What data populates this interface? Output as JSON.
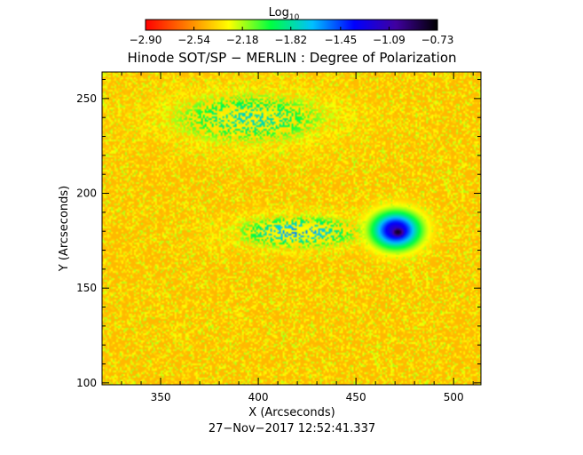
{
  "chart_data": {
    "type": "heatmap",
    "title": "Hinode SOT/SP − MERLIN : Degree of Polarization",
    "xlabel": "X (Arcseconds)",
    "ylabel": "Y (Arcseconds)",
    "xlim": [
      320,
      514
    ],
    "ylim": [
      99,
      264
    ],
    "x_ticks": [
      350,
      400,
      450,
      500
    ],
    "y_ticks": [
      100,
      150,
      200,
      250
    ],
    "x_tick_labels": [
      "350",
      "400",
      "450",
      "500"
    ],
    "y_tick_labels": [
      "100",
      "150",
      "200",
      "250"
    ],
    "colorbar": {
      "label_base": "Log",
      "label_subscript": "10",
      "min": -2.9,
      "max": -0.73,
      "tick_values": [
        -2.9,
        -2.54,
        -2.18,
        -1.82,
        -1.45,
        -1.09,
        -0.73
      ],
      "tick_labels": [
        "−2.90",
        "−2.54",
        "−2.18",
        "−1.82",
        "−1.45",
        "−1.09",
        "−0.73"
      ],
      "colors": [
        "#ff0000",
        "#ff7f00",
        "#ffff00",
        "#00ff40",
        "#00c0ff",
        "#0000ff",
        "#4000a0",
        "#000000"
      ]
    },
    "background_value": -2.45,
    "features": [
      {
        "name": "sunspot umbra",
        "x": 471,
        "y": 180,
        "rx": 9,
        "ry": 7,
        "value": -0.8
      },
      {
        "name": "sunspot penumbra",
        "x": 470,
        "y": 181,
        "rx": 18,
        "ry": 14,
        "value": -1.15
      },
      {
        "name": "plage",
        "x": 420,
        "y": 180,
        "rx": 45,
        "ry": 12,
        "value": -1.55
      },
      {
        "name": "network",
        "x": 395,
        "y": 240,
        "rx": 60,
        "ry": 20,
        "value": -1.75
      }
    ],
    "grid": false,
    "legend": "none"
  },
  "footer": {
    "timestamp": "27−Nov−2017 12:52:41.337"
  }
}
